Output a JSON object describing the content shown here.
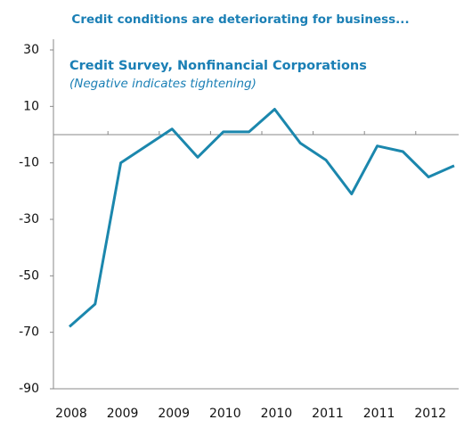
{
  "chart_data": {
    "type": "line",
    "title": "Credit conditions are deteriorating  for business...",
    "subtitle": "Credit Survey, Nonfinancial Corporations",
    "annotation": "(Negative indicates tightening)",
    "categories": [
      "2008",
      null,
      "2009",
      null,
      "2009",
      null,
      "2010",
      null,
      "2010",
      null,
      "2011",
      null,
      "2011",
      null,
      "2012",
      null
    ],
    "series": [
      {
        "name": "Credit Survey, Nonfinancial Corporations",
        "color": "#1b87ad",
        "values": [
          -68,
          -60,
          -10,
          -4,
          2,
          -8,
          1,
          1,
          9,
          -3,
          -9,
          -21,
          -4,
          -6,
          -15,
          -11
        ]
      }
    ],
    "ylim": [
      -90,
      30
    ],
    "yticks": [
      30,
      10,
      -10,
      -30,
      -50,
      -70,
      -90
    ]
  }
}
